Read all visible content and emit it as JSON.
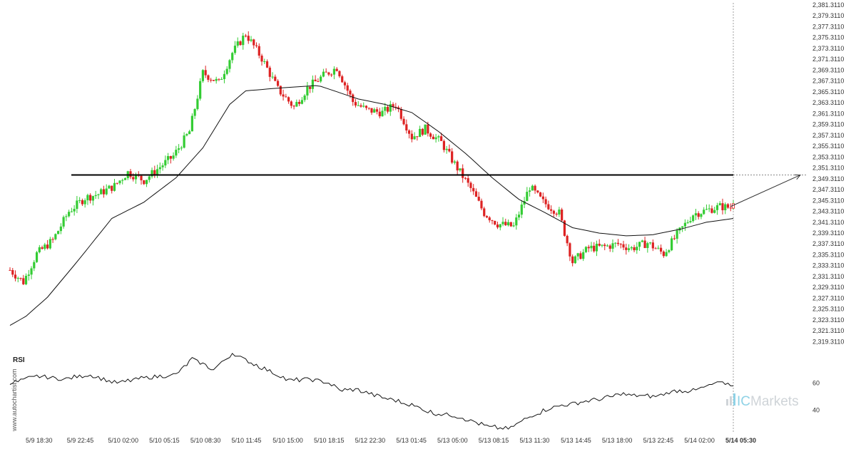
{
  "chart_data": {
    "type": "candlestick",
    "symbol": "",
    "price_axis": {
      "min": 2318.311,
      "max": 2381.311,
      "ticks": [
        "2,381.3110",
        "2,379.3110",
        "2,377.3110",
        "2,375.3110",
        "2,373.3110",
        "2,371.3110",
        "2,369.3110",
        "2,367.3110",
        "2,365.3110",
        "2,363.3110",
        "2,361.3110",
        "2,359.3110",
        "2,357.3110",
        "2,355.3110",
        "2,353.3110",
        "2,351.3110",
        "2,349.3110",
        "2,347.3110",
        "2,345.3110",
        "2,343.3110",
        "2,341.3110",
        "2,339.3110",
        "2,337.3110",
        "2,335.3110",
        "2,333.3110",
        "2,331.3110",
        "2,329.3110",
        "2,327.3110",
        "2,325.3110",
        "2,323.3110",
        "2,321.3110",
        "2,319.3110"
      ]
    },
    "time_axis": {
      "labels": [
        "5/9 18:30",
        "5/9 22:45",
        "5/10 02:00",
        "5/10 05:15",
        "5/10 08:30",
        "5/10 11:45",
        "5/10 15:00",
        "5/10 18:15",
        "5/12 22:30",
        "5/13 01:45",
        "5/13 05:00",
        "5/13 08:15",
        "5/13 11:30",
        "5/13 14:45",
        "5/13 18:00",
        "5/13 22:45",
        "5/14 02:00",
        "5/14 05:30"
      ],
      "current_label": "5/14 05:30"
    },
    "anchors": [
      [
        0,
        2332.5
      ],
      [
        5,
        2330.3
      ],
      [
        10,
        2335.5
      ],
      [
        16,
        2338.0
      ],
      [
        22,
        2343.3
      ],
      [
        28,
        2345.8
      ],
      [
        33,
        2346.5
      ],
      [
        39,
        2348.0
      ],
      [
        44,
        2350.5
      ],
      [
        50,
        2349.0
      ],
      [
        56,
        2351.5
      ],
      [
        61,
        2353.5
      ],
      [
        67,
        2358.0
      ],
      [
        72,
        2368.8
      ],
      [
        78,
        2367.0
      ],
      [
        83,
        2372.5
      ],
      [
        88,
        2376.0
      ],
      [
        94,
        2371.5
      ],
      [
        100,
        2365.8
      ],
      [
        106,
        2362.5
      ],
      [
        111,
        2366.0
      ],
      [
        117,
        2368.3
      ],
      [
        122,
        2369.8
      ],
      [
        128,
        2363.5
      ],
      [
        133,
        2362.0
      ],
      [
        139,
        2361.5
      ],
      [
        144,
        2363.0
      ],
      [
        150,
        2357.0
      ],
      [
        155,
        2358.5
      ],
      [
        161,
        2356.0
      ],
      [
        166,
        2352.0
      ],
      [
        172,
        2347.5
      ],
      [
        177,
        2343.0
      ],
      [
        182,
        2341.0
      ],
      [
        188,
        2340.5
      ],
      [
        194,
        2347.8
      ],
      [
        199,
        2345.0
      ],
      [
        205,
        2343.0
      ],
      [
        210,
        2334.0
      ],
      [
        216,
        2336.5
      ],
      [
        222,
        2336.8
      ],
      [
        227,
        2337.3
      ],
      [
        232,
        2336.5
      ],
      [
        238,
        2337.5
      ],
      [
        244,
        2335.5
      ],
      [
        249,
        2339.0
      ],
      [
        255,
        2342.8
      ],
      [
        260,
        2343.5
      ],
      [
        265,
        2344.2
      ],
      [
        269,
        2344.0
      ],
      [
        270,
        2345.3
      ]
    ],
    "moving_average": {
      "points": [
        [
          0,
          2322.3
        ],
        [
          6,
          2324.0
        ],
        [
          14,
          2327.5
        ],
        [
          25,
          2334.0
        ],
        [
          38,
          2342.0
        ],
        [
          50,
          2345.0
        ],
        [
          62,
          2349.5
        ],
        [
          72,
          2355.0
        ],
        [
          82,
          2363.0
        ],
        [
          88,
          2365.5
        ],
        [
          100,
          2366.0
        ],
        [
          115,
          2366.5
        ],
        [
          130,
          2364.0
        ],
        [
          140,
          2363.0
        ],
        [
          150,
          2361.5
        ],
        [
          160,
          2358.0
        ],
        [
          170,
          2354.0
        ],
        [
          180,
          2349.5
        ],
        [
          190,
          2345.5
        ],
        [
          200,
          2343.0
        ],
        [
          210,
          2340.3
        ],
        [
          220,
          2339.3
        ],
        [
          230,
          2338.8
        ],
        [
          240,
          2339.0
        ],
        [
          250,
          2340.0
        ],
        [
          260,
          2341.3
        ],
        [
          270,
          2342.0
        ]
      ]
    },
    "horizontal_level": 2350.0,
    "projection": {
      "from": [
        269,
        2344.2
      ],
      "to": [
        295,
        2350.0
      ]
    },
    "indicator": {
      "name": "RSI",
      "range": [
        25,
        83
      ],
      "ticks": [
        {
          "value": 60,
          "label": "60"
        },
        {
          "value": 40,
          "label": "40"
        }
      ],
      "anchors": [
        [
          0,
          60
        ],
        [
          10,
          65
        ],
        [
          20,
          63
        ],
        [
          30,
          66
        ],
        [
          40,
          60
        ],
        [
          48,
          63
        ],
        [
          56,
          65
        ],
        [
          62,
          66
        ],
        [
          68,
          78
        ],
        [
          76,
          70
        ],
        [
          83,
          82
        ],
        [
          90,
          75
        ],
        [
          96,
          70
        ],
        [
          104,
          62
        ],
        [
          112,
          63
        ],
        [
          118,
          61
        ],
        [
          123,
          55
        ],
        [
          130,
          55
        ],
        [
          138,
          50
        ],
        [
          148,
          45
        ],
        [
          158,
          38
        ],
        [
          168,
          35
        ],
        [
          178,
          28
        ],
        [
          186,
          26
        ],
        [
          194,
          35
        ],
        [
          202,
          42
        ],
        [
          210,
          45
        ],
        [
          220,
          48
        ],
        [
          228,
          52
        ],
        [
          240,
          50
        ],
        [
          248,
          54
        ],
        [
          256,
          55
        ],
        [
          264,
          60
        ],
        [
          270,
          59
        ]
      ]
    },
    "colors": {
      "up": "#33cc33",
      "down": "#dd2222",
      "ma": "#111111",
      "level": "#000000",
      "rsi": "#111111",
      "cursor": "#888888"
    }
  },
  "watermark": {
    "text": "www.autochartist.com"
  },
  "brand": {
    "ic": "IC",
    "markets": "Markets"
  }
}
